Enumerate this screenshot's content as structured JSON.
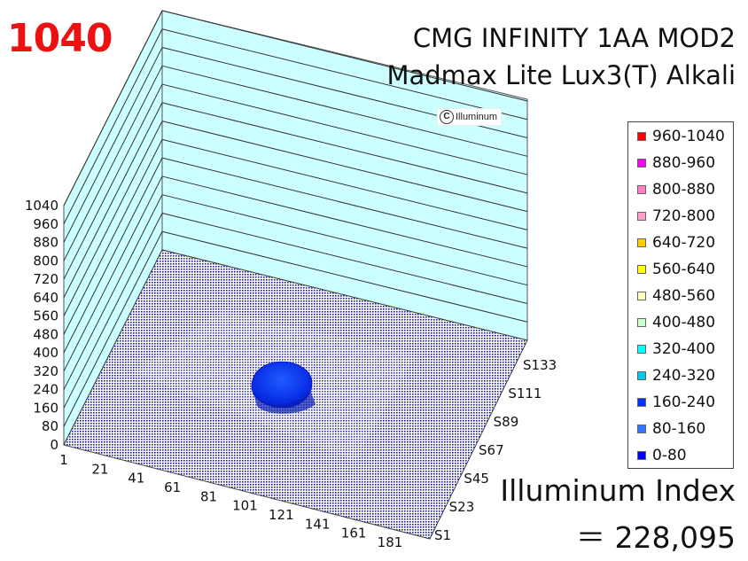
{
  "peak_value": "1040",
  "title_line1": "CMG INFINITY 1AA MOD2",
  "title_line2": "Madmax Lite Lux3(T) Alkali",
  "copyright": "Illuminum",
  "index_label": "Illuminum Index",
  "index_value": "＝ 228,095",
  "chart_data": {
    "type": "3d-surface",
    "z_ticks": [
      0,
      80,
      160,
      240,
      320,
      400,
      480,
      560,
      640,
      720,
      800,
      880,
      960,
      1040
    ],
    "zlim": [
      0,
      1040
    ],
    "x_ticks": [
      "1",
      "21",
      "41",
      "61",
      "81",
      "101",
      "121",
      "141",
      "161",
      "181"
    ],
    "y_ticks": [
      "S1",
      "S23",
      "S45",
      "S67",
      "S89",
      "S111",
      "S133"
    ],
    "legend": [
      {
        "label": "960-1040",
        "color": "#ff0000"
      },
      {
        "label": "880-960",
        "color": "#ff00ff"
      },
      {
        "label": "800-880",
        "color": "#ff80c0"
      },
      {
        "label": "720-800",
        "color": "#ff9ec8"
      },
      {
        "label": "640-720",
        "color": "#ffcc00"
      },
      {
        "label": "560-640",
        "color": "#ffff00"
      },
      {
        "label": "480-560",
        "color": "#ffffc0"
      },
      {
        "label": "400-480",
        "color": "#ccffcc"
      },
      {
        "label": "320-400",
        "color": "#00ffff"
      },
      {
        "label": "240-320",
        "color": "#00c8e6"
      },
      {
        "label": "160-240",
        "color": "#0033ff"
      },
      {
        "label": "80-160",
        "color": "#3377ff"
      },
      {
        "label": "0-80",
        "color": "#0000ff"
      }
    ],
    "legend_placement": "right",
    "grid": true
  }
}
